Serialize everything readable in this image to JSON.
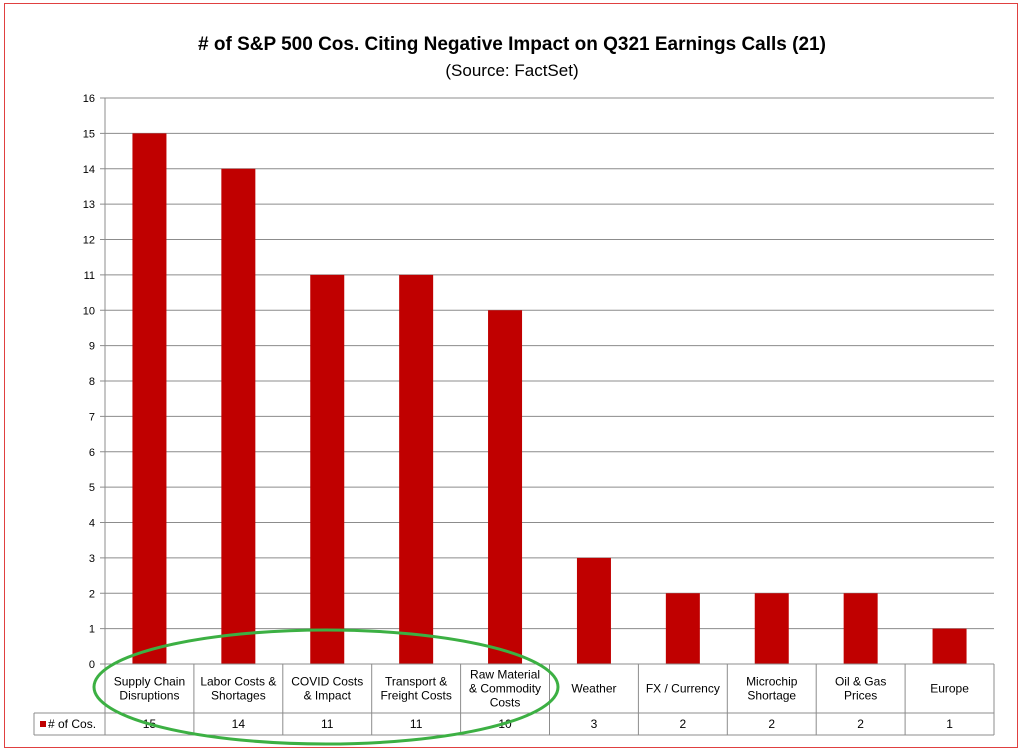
{
  "chart_data": {
    "type": "bar",
    "title": "# of S&P 500 Cos. Citing Negative Impact on Q321 Earnings Calls (21)",
    "subtitle": "(Source: FactSet)",
    "categories": [
      [
        "Supply Chain",
        "Disruptions"
      ],
      [
        "Labor Costs &",
        "Shortages"
      ],
      [
        "COVID Costs",
        "& Impact"
      ],
      [
        "Transport &",
        "Freight Costs"
      ],
      [
        "Raw Material",
        "& Commodity",
        "Costs"
      ],
      [
        "Weather"
      ],
      [
        "FX / Currency"
      ],
      [
        "Microchip",
        "Shortage"
      ],
      [
        "Oil & Gas",
        "Prices"
      ],
      [
        "Europe"
      ]
    ],
    "series": [
      {
        "name": "# of Cos.",
        "values": [
          15,
          14,
          11,
          11,
          10,
          3,
          2,
          2,
          2,
          1
        ]
      }
    ],
    "ylim": [
      0,
      16
    ],
    "yticks": [
      0,
      1,
      2,
      3,
      4,
      5,
      6,
      7,
      8,
      9,
      10,
      11,
      12,
      13,
      14,
      15,
      16
    ],
    "grid": true,
    "data_table": true,
    "bar_color": "#c00000",
    "highlight_color": "#3cb043"
  }
}
